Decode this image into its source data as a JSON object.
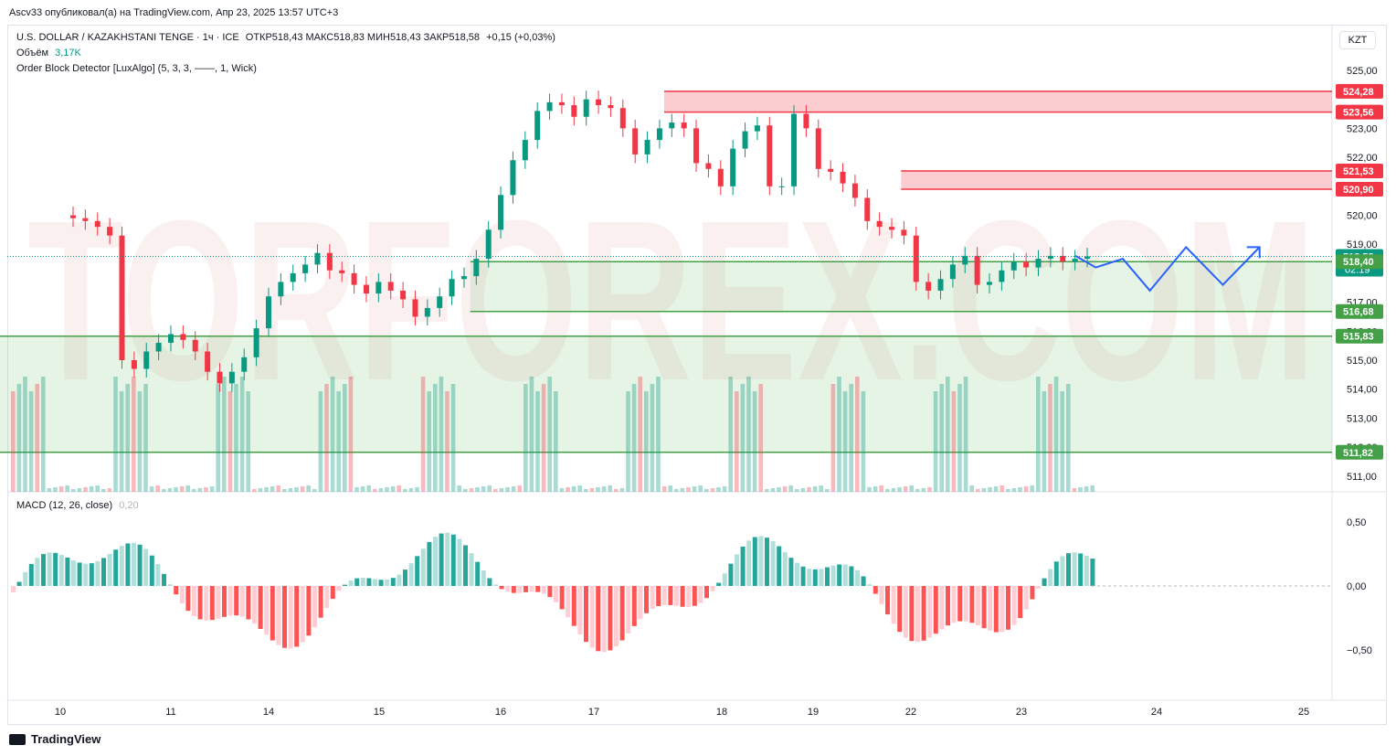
{
  "publisher_line": "Ascv33 опубликовал(а) на TradingView.com, Апр 23, 2025 13:57 UTC+3",
  "header": {
    "symbol": "U.S. DOLLAR / KAZAKHSTANI TENGE · 1ч · ICE",
    "ohlc": "ОТКР518,43  МАКС518,83  МИН518,43  ЗАКР518,58",
    "change": "+0,15 (+0,03%)",
    "volume_label": "Объём",
    "volume_value": "3,17K",
    "indicator": "Order Block Detector [LuxAlgo] (5, 3, 3, ——, 1, Wick)",
    "macd_label": "MACD (12, 26, close)",
    "macd_value": "0,20"
  },
  "currency_button": "KZT",
  "watermark": "TORFOREX.COM",
  "footer_brand": "TradingView",
  "colors": {
    "up": "#089981",
    "down": "#f23645",
    "bear_ob_fill": "rgba(242,54,69,0.25)",
    "bull_ob_fill": "rgba(76,175,80,0.25)",
    "projection": "#2962ff"
  },
  "chart_data": {
    "type": "candlestick",
    "price_axis_ticks": [
      "525,00",
      "523,00",
      "522,00",
      "520,00",
      "519,00",
      "517,00",
      "516,00",
      "515,00",
      "514,00",
      "513,00",
      "512,00",
      "511,00"
    ],
    "time_axis_ticks": [
      "10",
      "11",
      "14",
      "15",
      "16",
      "17",
      "18",
      "19",
      "22",
      "23",
      "24",
      "25"
    ],
    "price_labels": [
      {
        "value": 524.28,
        "text": "524,28",
        "kind": "bear"
      },
      {
        "value": 523.56,
        "text": "523,56",
        "kind": "bear"
      },
      {
        "value": 521.53,
        "text": "521,53",
        "kind": "bear"
      },
      {
        "value": 520.9,
        "text": "520,90",
        "kind": "bear"
      },
      {
        "value": 518.58,
        "text": "518,58",
        "kind": "last",
        "sub": "02:19"
      },
      {
        "value": 518.4,
        "text": "518,40",
        "kind": "bull"
      },
      {
        "value": 516.68,
        "text": "516,68",
        "kind": "bull"
      },
      {
        "value": 515.83,
        "text": "515,83",
        "kind": "bull"
      },
      {
        "value": 511.82,
        "text": "511,82",
        "kind": "bull"
      }
    ],
    "order_blocks": [
      {
        "type": "bearish",
        "top": 524.28,
        "bottom": 523.56,
        "start_day": 17.55
      },
      {
        "type": "bearish",
        "top": 521.53,
        "bottom": 520.9,
        "start_day": 19.9
      },
      {
        "type": "bullish",
        "top": 518.4,
        "bottom": 516.68,
        "start_day": 15.75
      },
      {
        "type": "bullish",
        "top": 515.83,
        "bottom": 511.82,
        "start_day": 9.2
      }
    ],
    "closes": [
      519.9,
      519.8,
      519.6,
      519.3,
      515.0,
      514.7,
      515.3,
      515.6,
      515.9,
      515.7,
      515.3,
      514.6,
      514.2,
      514.6,
      515.1,
      516.1,
      517.2,
      517.7,
      518.0,
      518.3,
      518.7,
      518.1,
      518.0,
      517.6,
      517.3,
      517.7,
      517.4,
      517.1,
      516.5,
      516.8,
      517.2,
      517.8,
      517.9,
      518.5,
      519.5,
      520.7,
      521.9,
      522.6,
      523.6,
      523.9,
      523.8,
      523.4,
      524.0,
      523.8,
      523.7,
      523.0,
      522.1,
      522.6,
      523.0,
      523.2,
      523.0,
      521.8,
      521.6,
      521.0,
      522.3,
      522.9,
      523.1,
      521.0,
      521.0,
      523.5,
      523.0,
      521.6,
      521.5,
      521.1,
      520.6,
      519.8,
      519.6,
      519.5,
      519.3,
      517.7,
      517.4,
      517.8,
      518.3,
      518.6,
      517.6,
      517.7,
      518.1,
      518.4,
      518.2,
      518.5,
      518.6,
      518.4,
      518.5,
      518.58
    ],
    "projection_points": [
      [
        23.4,
        518.6
      ],
      [
        23.55,
        518.2
      ],
      [
        23.75,
        518.5
      ],
      [
        23.95,
        517.4
      ],
      [
        24.2,
        518.9
      ],
      [
        24.45,
        517.6
      ],
      [
        24.7,
        518.9
      ]
    ],
    "macd_ticks": [
      "0,50",
      "0,00",
      "−0,50"
    ]
  }
}
